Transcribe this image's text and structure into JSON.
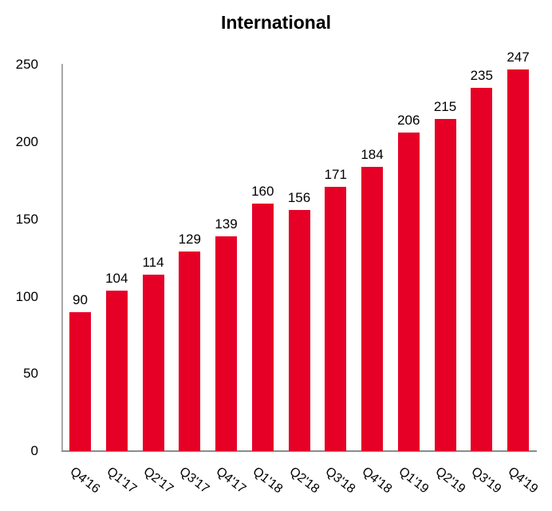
{
  "chart_data": {
    "type": "bar",
    "title": "International",
    "xlabel": "",
    "ylabel": "",
    "ylim": [
      0,
      250
    ],
    "yticks": [
      0,
      50,
      100,
      150,
      200,
      250
    ],
    "grid": false,
    "legend": null,
    "bar_color": "#e60026",
    "categories": [
      "Q4'16",
      "Q1'17",
      "Q2'17",
      "Q3'17",
      "Q4'17",
      "Q1'18",
      "Q2'18",
      "Q3'18",
      "Q4'18",
      "Q1'19",
      "Q2'19",
      "Q3'19",
      "Q4'19"
    ],
    "values": [
      90,
      104,
      114,
      129,
      139,
      160,
      156,
      171,
      184,
      206,
      215,
      235,
      247
    ],
    "data_labels": [
      "90",
      "104",
      "114",
      "129",
      "139",
      "160",
      "156",
      "171",
      "184",
      "206",
      "215",
      "235",
      "247"
    ]
  }
}
